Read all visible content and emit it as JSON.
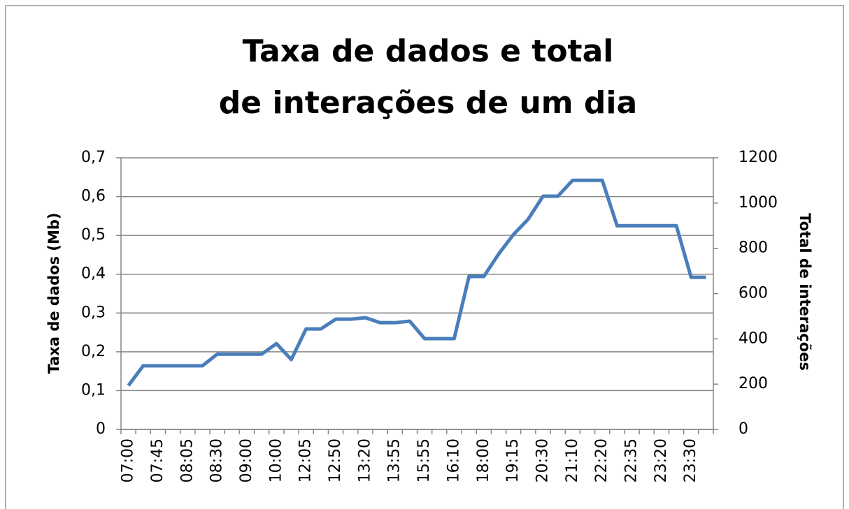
{
  "chart_data": {
    "type": "line",
    "title": [
      "Taxa de dados e total",
      "de interações de um dia"
    ],
    "y_label": "Taxa de dados (Mb)",
    "y2_label": "Total de interações",
    "categories": [
      "07:00",
      null,
      "07:45",
      null,
      "08:05",
      null,
      "08:30",
      null,
      "09:00",
      null,
      "10:00",
      null,
      "12:05",
      null,
      "12:50",
      null,
      "13:20",
      null,
      "13:55",
      null,
      "15:55",
      null,
      "16:10",
      null,
      "18:00",
      null,
      "19:15",
      null,
      "20:30",
      null,
      "21:10",
      null,
      "22:20",
      null,
      "22:35",
      null,
      "23:20",
      null,
      "23:30",
      null
    ],
    "series": [
      {
        "name": "Taxa de dados (Mb)",
        "color": "#4a7ebb",
        "axis": "y",
        "values": [
          0.113,
          0.164,
          0.164,
          0.164,
          0.164,
          0.164,
          0.194,
          0.194,
          0.194,
          0.194,
          0.221,
          0.18,
          0.259,
          0.259,
          0.284,
          0.284,
          0.288,
          0.275,
          0.275,
          0.279,
          0.234,
          0.234,
          0.234,
          0.394,
          0.394,
          0.452,
          0.502,
          0.542,
          0.601,
          0.601,
          0.642,
          0.642,
          0.642,
          0.525,
          0.525,
          0.525,
          0.525,
          0.525,
          0.392,
          0.392
        ]
      }
    ],
    "ylim": [
      0,
      0.7
    ],
    "yticks": [
      0,
      {
        "value": 0.1,
        "label": "0,1"
      },
      {
        "value": 0.2,
        "label": "0,2"
      },
      {
        "value": 0.3,
        "label": "0,3"
      },
      {
        "value": 0.4,
        "label": "0,4"
      },
      {
        "value": 0.5,
        "label": "0,5"
      },
      {
        "value": 0.6,
        "label": "0,6"
      },
      {
        "value": 0.7,
        "label": "0,7"
      }
    ],
    "y2lim": [
      0,
      1200
    ],
    "y2ticks": [
      0,
      200,
      400,
      600,
      800,
      1000,
      1200
    ],
    "grid": true
  }
}
